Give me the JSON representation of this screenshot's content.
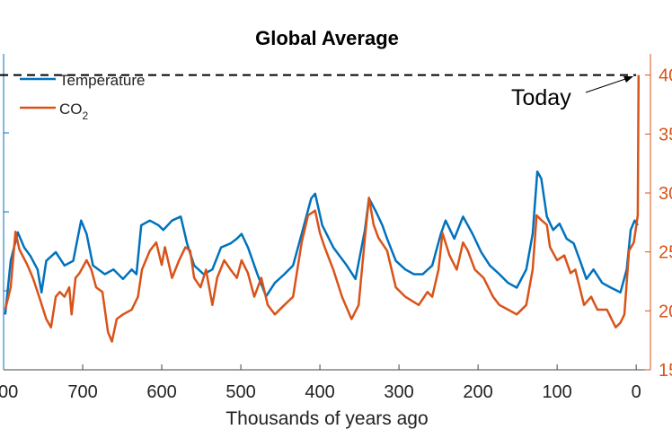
{
  "chart_data": {
    "type": "line",
    "title": "Global Average",
    "xlabel": "Thousands of years ago",
    "xlim": [
      800,
      -18
    ],
    "x_reversed": true,
    "x_ticks": [
      700,
      600,
      500,
      400,
      300,
      200,
      100,
      0
    ],
    "x_tick_labels": [
      "700",
      "600",
      "500",
      "400",
      "300",
      "200",
      "100",
      "0"
    ],
    "x_tick_label_left_partial": "00",
    "ylim_left": [
      0,
      4
    ],
    "y_ticks_left": [
      1,
      2,
      3
    ],
    "ylim_right": [
      150,
      418
    ],
    "y_ticks_right": [
      150,
      200,
      250,
      300,
      350,
      400
    ],
    "y_tick_labels_right": [
      "150",
      "200",
      "250",
      "300",
      "350",
      "400"
    ],
    "grid": false,
    "legend": "top-left",
    "legend_entries": {
      "temperature": "Temperature",
      "co2_main": "CO",
      "co2_sub": "2"
    },
    "annotation": {
      "text": "Today",
      "reference_line_ppm": 400
    },
    "colors": {
      "temperature": "#0072BD",
      "co2": "#D95319",
      "reference": "#000000"
    },
    "series": [
      {
        "name": "Temperature",
        "axis": "left",
        "x": [
          798,
          791,
          782,
          774,
          766,
          757,
          752,
          746,
          734,
          723,
          712,
          702,
          695,
          687,
          672,
          661,
          649,
          638,
          632,
          626,
          615,
          604,
          598,
          587,
          576,
          568,
          559,
          547,
          536,
          525,
          513,
          505,
          499,
          491,
          479,
          468,
          457,
          445,
          434,
          423,
          411,
          406,
          397,
          383,
          366,
          355,
          343,
          338,
          329,
          321,
          315,
          304,
          292,
          281,
          270,
          258,
          247,
          241,
          230,
          219,
          207,
          196,
          185,
          173,
          162,
          151,
          139,
          131,
          125,
          120,
          113,
          105,
          97,
          88,
          79,
          71,
          63,
          54,
          43,
          32,
          20,
          12,
          7,
          2,
          -2
        ],
        "y": [
          0.7,
          1.38,
          1.74,
          1.55,
          1.44,
          1.27,
          0.98,
          1.38,
          1.49,
          1.32,
          1.38,
          1.89,
          1.72,
          1.32,
          1.21,
          1.27,
          1.15,
          1.27,
          1.21,
          1.83,
          1.89,
          1.83,
          1.77,
          1.89,
          1.94,
          1.6,
          1.32,
          1.21,
          1.27,
          1.55,
          1.6,
          1.66,
          1.72,
          1.55,
          1.21,
          0.93,
          1.1,
          1.21,
          1.32,
          1.72,
          2.17,
          2.23,
          1.83,
          1.55,
          1.32,
          1.15,
          1.77,
          2.17,
          2.0,
          1.83,
          1.66,
          1.38,
          1.27,
          1.21,
          1.21,
          1.32,
          1.72,
          1.89,
          1.66,
          1.94,
          1.72,
          1.49,
          1.32,
          1.21,
          1.1,
          1.04,
          1.27,
          1.72,
          2.51,
          2.42,
          1.94,
          1.77,
          1.85,
          1.66,
          1.6,
          1.38,
          1.15,
          1.27,
          1.1,
          1.04,
          0.98,
          1.27,
          1.77,
          1.89,
          1.83
        ]
      },
      {
        "name": "CO2",
        "axis": "right",
        "x": [
          798,
          791,
          785,
          780,
          770,
          763,
          755,
          746,
          740,
          734,
          729,
          723,
          717,
          714,
          709,
          704,
          695,
          689,
          683,
          675,
          668,
          663,
          657,
          649,
          638,
          630,
          625,
          615,
          607,
          600,
          596,
          587,
          578,
          570,
          564,
          559,
          551,
          544,
          536,
          530,
          521,
          513,
          505,
          499,
          491,
          483,
          474,
          466,
          457,
          445,
          434,
          423,
          415,
          406,
          400,
          394,
          383,
          372,
          360,
          351,
          343,
          338,
          332,
          326,
          315,
          304,
          292,
          275,
          264,
          258,
          250,
          245,
          236,
          227,
          219,
          213,
          204,
          193,
          181,
          173,
          162,
          151,
          139,
          131,
          126,
          120,
          113,
          109,
          100,
          91,
          83,
          77,
          66,
          57,
          49,
          37,
          26,
          20,
          15,
          9,
          3,
          -2,
          -3
        ],
        "y": [
          201,
          220,
          267,
          252,
          239,
          228,
          212,
          193,
          186,
          212,
          216,
          212,
          220,
          197,
          228,
          232,
          243,
          235,
          220,
          216,
          182,
          174,
          193,
          197,
          201,
          212,
          235,
          251,
          258,
          239,
          254,
          228,
          243,
          254,
          251,
          228,
          220,
          235,
          205,
          228,
          243,
          235,
          228,
          243,
          232,
          212,
          228,
          205,
          197,
          205,
          212,
          258,
          281,
          285,
          266,
          254,
          235,
          212,
          193,
          205,
          262,
          296,
          273,
          262,
          251,
          220,
          212,
          205,
          216,
          212,
          235,
          266,
          247,
          235,
          258,
          251,
          235,
          228,
          212,
          205,
          201,
          197,
          205,
          235,
          281,
          277,
          273,
          254,
          243,
          247,
          232,
          235,
          205,
          212,
          201,
          201,
          186,
          190,
          197,
          251,
          258,
          281,
          400
        ]
      }
    ]
  }
}
